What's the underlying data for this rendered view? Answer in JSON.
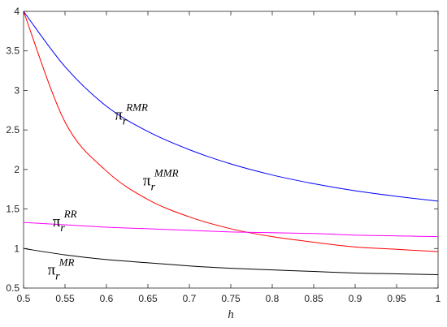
{
  "chart_data": {
    "type": "line",
    "xlabel": "h",
    "ylabel": "",
    "xlim": [
      0.5,
      1
    ],
    "ylim": [
      0.5,
      4
    ],
    "xticks": [
      0.5,
      0.55,
      0.6,
      0.65,
      0.7,
      0.75,
      0.8,
      0.85,
      0.9,
      0.95,
      1
    ],
    "xtick_labels": [
      "0.5",
      "0.55",
      "0.6",
      "0.65",
      "0.7",
      "0.75",
      "0.8",
      "0.85",
      "0.9",
      "0.95",
      "1"
    ],
    "yticks": [
      0.5,
      1,
      1.5,
      2,
      2.5,
      3,
      3.5,
      4
    ],
    "ytick_labels": [
      "0.5",
      "1",
      "1.5",
      "2",
      "2.5",
      "3",
      "3.5",
      "4"
    ],
    "grid": false,
    "x": [
      0.5,
      0.55,
      0.6,
      0.65,
      0.7,
      0.75,
      0.8,
      0.85,
      0.9,
      0.95,
      1
    ],
    "series": [
      {
        "color": "#0000ff",
        "values": [
          4.0,
          3.3,
          2.8,
          2.48,
          2.25,
          2.07,
          1.93,
          1.82,
          1.73,
          1.66,
          1.6
        ]
      },
      {
        "color": "#ff0000",
        "values": [
          4.0,
          2.6,
          1.98,
          1.62,
          1.4,
          1.25,
          1.15,
          1.08,
          1.02,
          0.99,
          0.96
        ]
      },
      {
        "color": "#ff00ff",
        "values": [
          1.33,
          1.3,
          1.27,
          1.25,
          1.23,
          1.21,
          1.2,
          1.19,
          1.17,
          1.16,
          1.15
        ]
      },
      {
        "color": "#000000",
        "values": [
          1.0,
          0.92,
          0.86,
          0.82,
          0.78,
          0.75,
          0.73,
          0.71,
          0.69,
          0.68,
          0.67
        ]
      }
    ],
    "annotations": [
      {
        "base": "π",
        "sub": "r",
        "sup": "RMR",
        "x": 0.61,
        "y": 2.63
      },
      {
        "base": "π",
        "sub": "r",
        "sup": "MMR",
        "x": 0.644,
        "y": 1.8
      },
      {
        "base": "π",
        "sub": "r",
        "sup": "RR",
        "x": 0.535,
        "y": 1.28
      },
      {
        "base": "π",
        "sub": "r",
        "sup": "MR",
        "x": 0.529,
        "y": 0.67
      }
    ]
  }
}
